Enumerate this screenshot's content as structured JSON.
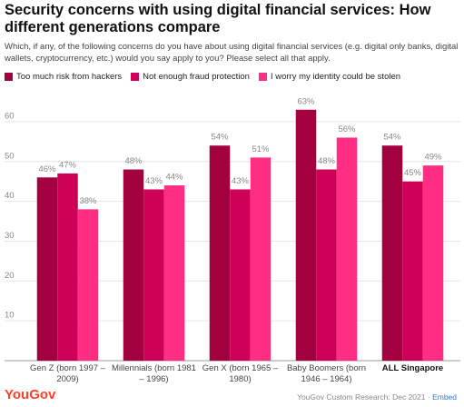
{
  "chart_data": {
    "type": "bar",
    "title": "Security concerns with using digital financial services: How different generations compare",
    "subtitle": "Which, if any, of the following concerns do you have about using digital financial services (e.g. digital only banks, digital wallets, cryptocurrency, etc.) would you say apply to you? Please select all that apply.",
    "categories": [
      "Gen Z (born 1997 – 2009)",
      "Millennials (born 1981 – 1996)",
      "Gen X (born 1965 – 1980)",
      "Baby Boomers (born 1946 – 1964)",
      "ALL Singapore"
    ],
    "series": [
      {
        "name": "Too much risk from hackers",
        "color": "#a3003f",
        "values": [
          46,
          48,
          54,
          63,
          54
        ],
        "value_labels": [
          "46%",
          "48%",
          "54%",
          "63%",
          "54%"
        ]
      },
      {
        "name": "Not enough fraud protection",
        "color": "#cf0058",
        "values": [
          47,
          43,
          43,
          48,
          45
        ],
        "value_labels": [
          "47%",
          "43%",
          "43%",
          "48%",
          "45%"
        ]
      },
      {
        "name": "I worry my identity could be stolen",
        "color": "#ff2e82",
        "values": [
          38,
          44,
          51,
          56,
          49
        ],
        "value_labels": [
          "38%",
          "44%",
          "51%",
          "56%",
          "49%"
        ]
      }
    ],
    "ylim": [
      0,
      65
    ],
    "yticks": [
      10,
      20,
      30,
      40,
      50,
      60
    ],
    "grid": true,
    "logo": "YouGov",
    "source": "YouGov Custom Research: Dec 2021 ·",
    "link": "Embed"
  }
}
